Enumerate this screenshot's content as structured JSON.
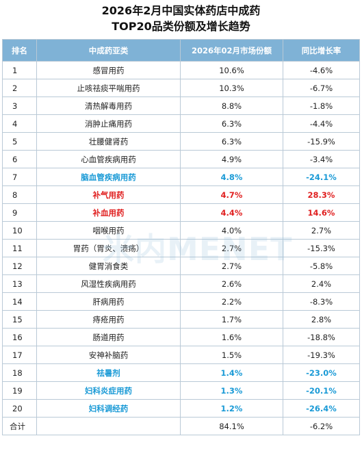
{
  "title": {
    "line1": "2026年2月中国实体药店中成药",
    "line2": "TOP20品类份额及增长趋势"
  },
  "watermark": "米内MENET",
  "table": {
    "headers": [
      "排名",
      "中成药亚类",
      "2026年02月市场份额",
      "同比增长率"
    ],
    "rows": [
      {
        "rank": "1",
        "category": "感冒用药",
        "share": "10.6%",
        "growth": "-4.6%",
        "highlight": ""
      },
      {
        "rank": "2",
        "category": "止咳祛痰平喘用药",
        "share": "10.3%",
        "growth": "-6.7%",
        "highlight": ""
      },
      {
        "rank": "3",
        "category": "清热解毒用药",
        "share": "8.8%",
        "growth": "-1.8%",
        "highlight": ""
      },
      {
        "rank": "4",
        "category": "消肿止痛用药",
        "share": "6.3%",
        "growth": "-4.4%",
        "highlight": ""
      },
      {
        "rank": "5",
        "category": "壮腰健肾药",
        "share": "6.3%",
        "growth": "-15.9%",
        "highlight": ""
      },
      {
        "rank": "6",
        "category": "心血管疾病用药",
        "share": "4.9%",
        "growth": "-3.4%",
        "highlight": ""
      },
      {
        "rank": "7",
        "category": "脑血管疾病用药",
        "share": "4.8%",
        "growth": "-24.1%",
        "highlight": "blue"
      },
      {
        "rank": "8",
        "category": "补气用药",
        "share": "4.7%",
        "growth": "28.3%",
        "highlight": "red"
      },
      {
        "rank": "9",
        "category": "补血用药",
        "share": "4.4%",
        "growth": "14.6%",
        "highlight": "red"
      },
      {
        "rank": "10",
        "category": "咽喉用药",
        "share": "4.0%",
        "growth": "2.7%",
        "highlight": ""
      },
      {
        "rank": "11",
        "category": "胃药（胃炎、溃疡）",
        "share": "2.7%",
        "growth": "-15.3%",
        "highlight": ""
      },
      {
        "rank": "12",
        "category": "健胃消食类",
        "share": "2.7%",
        "growth": "-5.8%",
        "highlight": ""
      },
      {
        "rank": "13",
        "category": "风湿性疾病用药",
        "share": "2.6%",
        "growth": "2.4%",
        "highlight": ""
      },
      {
        "rank": "14",
        "category": "肝病用药",
        "share": "2.2%",
        "growth": "-8.3%",
        "highlight": ""
      },
      {
        "rank": "15",
        "category": "痔疮用药",
        "share": "1.7%",
        "growth": "2.8%",
        "highlight": ""
      },
      {
        "rank": "16",
        "category": "肠道用药",
        "share": "1.6%",
        "growth": "-18.8%",
        "highlight": ""
      },
      {
        "rank": "17",
        "category": "安神补脑药",
        "share": "1.5%",
        "growth": "-19.3%",
        "highlight": ""
      },
      {
        "rank": "18",
        "category": "祛暑剂",
        "share": "1.4%",
        "growth": "-23.0%",
        "highlight": "blue"
      },
      {
        "rank": "19",
        "category": "妇科炎症用药",
        "share": "1.3%",
        "growth": "-20.1%",
        "highlight": "blue"
      },
      {
        "rank": "20",
        "category": "妇科调经药",
        "share": "1.2%",
        "growth": "-26.4%",
        "highlight": "blue"
      }
    ],
    "total": {
      "label": "合计",
      "category": "",
      "share": "84.1%",
      "growth": "-6.2%"
    }
  },
  "colors": {
    "header_bg": "#7fb2d6",
    "highlight_blue": "#1a9ad6",
    "highlight_red": "#e02020"
  }
}
